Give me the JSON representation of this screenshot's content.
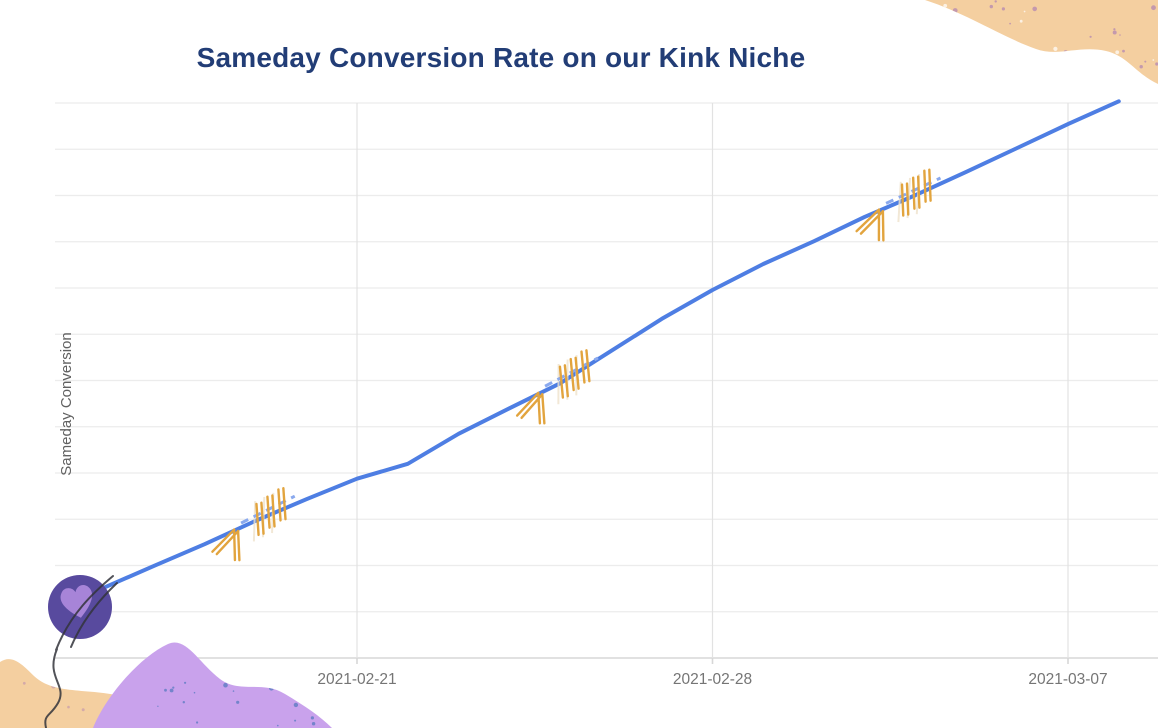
{
  "header": {
    "title": "Sameday Conversion Rate on our Kink Niche"
  },
  "chart_data": {
    "type": "line",
    "title": "Sameday Conversion Rate on our Kink Niche",
    "xlabel": "",
    "ylabel": "Sameday Conversion",
    "x_tick_labels": [
      "2021-02-21",
      "2021-02-28",
      "2021-03-07"
    ],
    "y_tick_labels": [],
    "y_axis_note": "y-axis has no numeric labels; values below are relative (0 = bottom axis, 1 = top gridline)",
    "grid": true,
    "legend": false,
    "series": [
      {
        "name": "Sameday Conversion",
        "x": [
          "2021-02-16",
          "2021-02-17",
          "2021-02-18",
          "2021-02-19",
          "2021-02-20",
          "2021-02-21",
          "2021-02-22",
          "2021-02-23",
          "2021-02-24",
          "2021-02-25",
          "2021-02-26",
          "2021-02-27",
          "2021-02-28",
          "2021-03-01",
          "2021-03-02",
          "2021-03-03",
          "2021-03-04",
          "2021-03-05",
          "2021-03-06",
          "2021-03-07",
          "2021-03-08"
        ],
        "values": [
          0.126,
          0.166,
          0.205,
          0.247,
          0.286,
          0.323,
          0.35,
          0.404,
          0.45,
          0.495,
          0.553,
          0.611,
          0.663,
          0.71,
          0.751,
          0.795,
          0.834,
          0.876,
          0.919,
          0.962,
          1.003
        ]
      }
    ]
  },
  "decorations": {
    "balloon": "purple balloon with a lighter heart and dark string at the start of the line",
    "arrow_doodles": "three orange hand-drawn arrow doodles placed along the line",
    "blob_top_right": "peach corner blob with purple speckles",
    "blob_bottom": "light purple mountain blob with blue speckles",
    "blob_bottom_left": "peach corner blob"
  },
  "colors": {
    "title": "#223d76",
    "line": "#4e7ee3",
    "line_dash": "#8aa9ee",
    "grid": "#ececec",
    "grid_vertical": "#e2e2e2",
    "axis": "#d7d7d7",
    "tick_label": "#757575",
    "axis_label": "#616161",
    "doodle": "#e2a43e",
    "doodle_faint": "#efe3cd",
    "balloon": "#584a9e",
    "balloon_heart": "#a784d8",
    "string": "#33343c",
    "blob_peach": "#f4cfa0",
    "blob_purple": "#c9a2ec",
    "speckle_purple": "#8a56bd",
    "speckle_blue": "#2e6cb0"
  }
}
